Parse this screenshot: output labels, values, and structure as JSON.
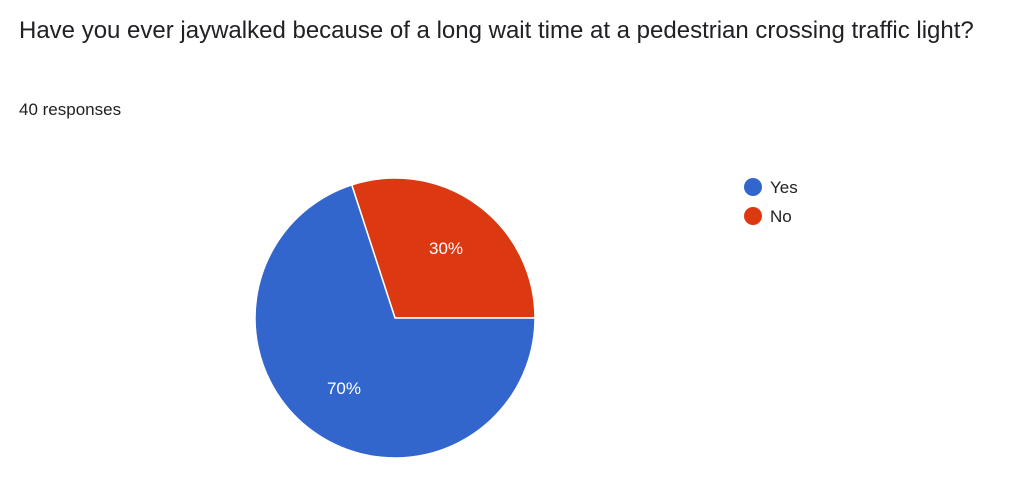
{
  "question": {
    "title": "Have you ever jaywalked because of a long wait time at a pedestrian crossing traffic light?",
    "responses_label": "40 responses"
  },
  "chart_data": {
    "type": "pie",
    "title": "",
    "slices": [
      {
        "label": "Yes",
        "value": 70,
        "display": "70%",
        "color": "#3366cc"
      },
      {
        "label": "No",
        "value": 30,
        "display": "30%",
        "color": "#dc3912"
      }
    ],
    "legend_position": "right",
    "slice_border_color": "#ffffff"
  }
}
